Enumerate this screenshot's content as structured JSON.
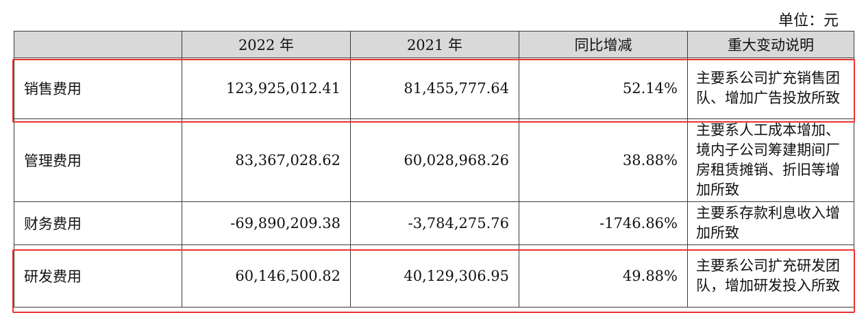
{
  "unit_label": "单位：元",
  "headers": [
    "",
    "2022 年",
    "2021 年",
    "同比增减",
    "重大变动说明"
  ],
  "rows": [
    {
      "name": "销售费用",
      "y2022": "123,925,012.41",
      "y2021": "81,455,777.64",
      "change": "52.14%",
      "note": "主要系公司扩充销售团队、增加广告投放所致",
      "highlighted": true
    },
    {
      "name": "管理费用",
      "y2022": "83,367,028.62",
      "y2021": "60,028,968.26",
      "change": "38.88%",
      "note": "主要系人工成本增加、境内子公司筹建期间厂房租赁摊销、折旧等增加所致",
      "highlighted": false
    },
    {
      "name": "财务费用",
      "y2022": "-69,890,209.38",
      "y2021": "-3,784,275.76",
      "change": "-1746.86%",
      "note": "主要系存款利息收入增加所致",
      "highlighted": false
    },
    {
      "name": "研发费用",
      "y2022": "60,146,500.82",
      "y2021": "40,129,306.95",
      "change": "49.88%",
      "note": "主要系公司扩充研发团队，增加研发投入所致",
      "highlighted": true
    }
  ],
  "highlight_color": "#e8332e",
  "header_bg": "#d9d9d9"
}
